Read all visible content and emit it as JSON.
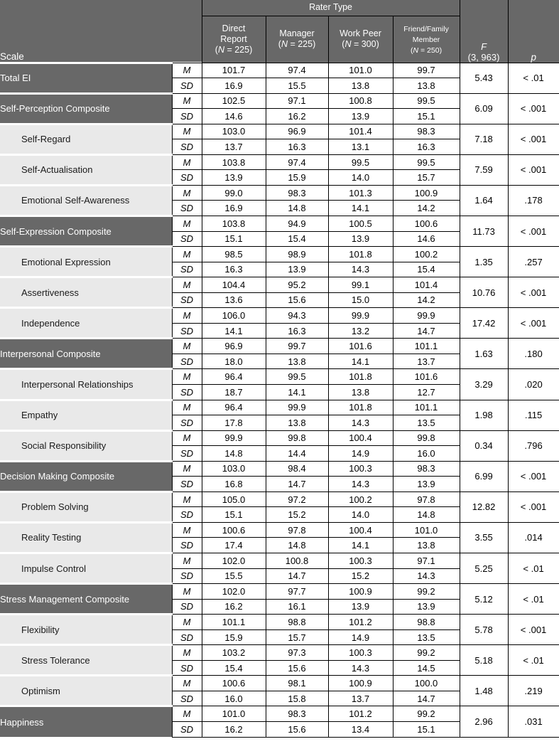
{
  "header": {
    "scale_label": "Scale",
    "rater_type_label": "Rater Type",
    "raters": [
      {
        "lines": [
          "Direct",
          "Report"
        ],
        "n_pre": "(",
        "n_sym": "N",
        "n_post": " = 225)",
        "small": false
      },
      {
        "lines": [
          "Manager"
        ],
        "n_pre": "(",
        "n_sym": "N",
        "n_post": " = 225)",
        "small": false
      },
      {
        "lines": [
          "Work Peer"
        ],
        "n_pre": "(",
        "n_sym": "N",
        "n_post": " = 300)",
        "small": false
      },
      {
        "lines": [
          "Friend/Family",
          "Member"
        ],
        "n_pre": "(",
        "n_sym": "N",
        "n_post": " = 250)",
        "small": true
      }
    ],
    "f_symbol": "F",
    "f_df": "(3, 963)",
    "p_label": "p"
  },
  "labels": {
    "m": "M",
    "sd": "SD"
  },
  "colors": {
    "header_bg": "#686868",
    "composite_bg": "#686868",
    "subscale_bg": "#e9e9e9",
    "border": "#000000"
  },
  "rows": [
    {
      "label": "Total EI",
      "shade": "dark",
      "indent": false,
      "m": [
        "101.7",
        "97.4",
        "101.0",
        "99.7"
      ],
      "sd": [
        "16.9",
        "15.5",
        "13.8",
        "13.8"
      ],
      "f": "5.43",
      "p": "< .01"
    },
    {
      "label": "Self-Perception Composite",
      "shade": "dark",
      "indent": false,
      "m": [
        "102.5",
        "97.1",
        "100.8",
        "99.5"
      ],
      "sd": [
        "14.6",
        "16.2",
        "13.9",
        "15.1"
      ],
      "f": "6.09",
      "p": "< .001"
    },
    {
      "label": "Self-Regard",
      "shade": "light",
      "indent": true,
      "m": [
        "103.0",
        "96.9",
        "101.4",
        "98.3"
      ],
      "sd": [
        "13.7",
        "16.3",
        "13.1",
        "16.3"
      ],
      "f": "7.18",
      "p": "< .001"
    },
    {
      "label": "Self-Actualisation",
      "shade": "light",
      "indent": true,
      "m": [
        "103.8",
        "97.4",
        "99.5",
        "99.5"
      ],
      "sd": [
        "13.9",
        "15.9",
        "14.0",
        "15.7"
      ],
      "f": "7.59",
      "p": "< .001"
    },
    {
      "label": "Emotional Self-Awareness",
      "shade": "light",
      "indent": true,
      "m": [
        "99.0",
        "98.3",
        "101.3",
        "100.9"
      ],
      "sd": [
        "16.9",
        "14.8",
        "14.1",
        "14.2"
      ],
      "f": "1.64",
      "p": ".178"
    },
    {
      "label": "Self-Expression Composite",
      "shade": "dark",
      "indent": false,
      "m": [
        "103.8",
        "94.9",
        "100.5",
        "100.6"
      ],
      "sd": [
        "15.1",
        "15.4",
        "13.9",
        "14.6"
      ],
      "f": "11.73",
      "p": "< .001"
    },
    {
      "label": "Emotional Expression",
      "shade": "light",
      "indent": true,
      "m": [
        "98.5",
        "98.9",
        "101.8",
        "100.2"
      ],
      "sd": [
        "16.3",
        "13.9",
        "14.3",
        "15.4"
      ],
      "f": "1.35",
      "p": ".257"
    },
    {
      "label": "Assertiveness",
      "shade": "light",
      "indent": true,
      "m": [
        "104.4",
        "95.2",
        "99.1",
        "101.4"
      ],
      "sd": [
        "13.6",
        "15.6",
        "15.0",
        "14.2"
      ],
      "f": "10.76",
      "p": "< .001"
    },
    {
      "label": "Independence",
      "shade": "light",
      "indent": true,
      "m": [
        "106.0",
        "94.3",
        "99.9",
        "99.9"
      ],
      "sd": [
        "14.1",
        "16.3",
        "13.2",
        "14.7"
      ],
      "f": "17.42",
      "p": "< .001"
    },
    {
      "label": "Interpersonal Composite",
      "shade": "dark",
      "indent": false,
      "m": [
        "96.9",
        "99.7",
        "101.6",
        "101.1"
      ],
      "sd": [
        "18.0",
        "13.8",
        "14.1",
        "13.7"
      ],
      "f": "1.63",
      "p": ".180"
    },
    {
      "label": "Interpersonal Relationships",
      "shade": "light",
      "indent": true,
      "m": [
        "96.4",
        "99.5",
        "101.8",
        "101.6"
      ],
      "sd": [
        "18.7",
        "14.1",
        "13.8",
        "12.7"
      ],
      "f": "3.29",
      "p": ".020"
    },
    {
      "label": "Empathy",
      "shade": "light",
      "indent": true,
      "m": [
        "96.4",
        "99.9",
        "101.8",
        "101.1"
      ],
      "sd": [
        "17.8",
        "13.8",
        "14.3",
        "13.5"
      ],
      "f": "1.98",
      "p": ".115"
    },
    {
      "label": "Social Responsibility",
      "shade": "light",
      "indent": true,
      "m": [
        "99.9",
        "99.8",
        "100.4",
        "99.8"
      ],
      "sd": [
        "14.8",
        "14.4",
        "14.9",
        "16.0"
      ],
      "f": "0.34",
      "p": ".796"
    },
    {
      "label": "Decision Making Composite",
      "shade": "dark",
      "indent": false,
      "m": [
        "103.0",
        "98.4",
        "100.3",
        "98.3"
      ],
      "sd": [
        "16.8",
        "14.7",
        "14.3",
        "13.9"
      ],
      "f": "6.99",
      "p": "< .001"
    },
    {
      "label": "Problem Solving",
      "shade": "light",
      "indent": true,
      "m": [
        "105.0",
        "97.2",
        "100.2",
        "97.8"
      ],
      "sd": [
        "15.1",
        "15.2",
        "14.0",
        "14.8"
      ],
      "f": "12.82",
      "p": "< .001"
    },
    {
      "label": "Reality Testing",
      "shade": "light",
      "indent": true,
      "m": [
        "100.6",
        "97.8",
        "100.4",
        "101.0"
      ],
      "sd": [
        "17.4",
        "14.8",
        "14.1",
        "13.8"
      ],
      "f": "3.55",
      "p": ".014"
    },
    {
      "label": "Impulse Control",
      "shade": "light",
      "indent": true,
      "m": [
        "102.0",
        "100.8",
        "100.3",
        "97.1"
      ],
      "sd": [
        "15.5",
        "14.7",
        "15.2",
        "14.3"
      ],
      "f": "5.25",
      "p": "< .01"
    },
    {
      "label": "Stress Management Composite",
      "shade": "dark",
      "indent": false,
      "m": [
        "102.0",
        "97.7",
        "100.9",
        "99.2"
      ],
      "sd": [
        "16.2",
        "16.1",
        "13.9",
        "13.9"
      ],
      "f": "5.12",
      "p": "< .01"
    },
    {
      "label": "Flexibility",
      "shade": "light",
      "indent": true,
      "m": [
        "101.1",
        "98.8",
        "101.2",
        "98.8"
      ],
      "sd": [
        "15.9",
        "15.7",
        "14.9",
        "13.5"
      ],
      "f": "5.78",
      "p": "< .001"
    },
    {
      "label": "Stress Tolerance",
      "shade": "light",
      "indent": true,
      "m": [
        "103.2",
        "97.3",
        "100.3",
        "99.2"
      ],
      "sd": [
        "15.4",
        "15.6",
        "14.3",
        "14.5"
      ],
      "f": "5.18",
      "p": "< .01"
    },
    {
      "label": "Optimism",
      "shade": "light",
      "indent": true,
      "m": [
        "100.6",
        "98.1",
        "100.9",
        "100.0"
      ],
      "sd": [
        "16.0",
        "15.8",
        "13.7",
        "14.7"
      ],
      "f": "1.48",
      "p": ".219"
    },
    {
      "label": "Happiness",
      "shade": "dark",
      "indent": false,
      "m": [
        "101.0",
        "98.3",
        "101.2",
        "99.2"
      ],
      "sd": [
        "16.2",
        "15.6",
        "13.4",
        "15.1"
      ],
      "f": "2.96",
      "p": ".031"
    }
  ]
}
